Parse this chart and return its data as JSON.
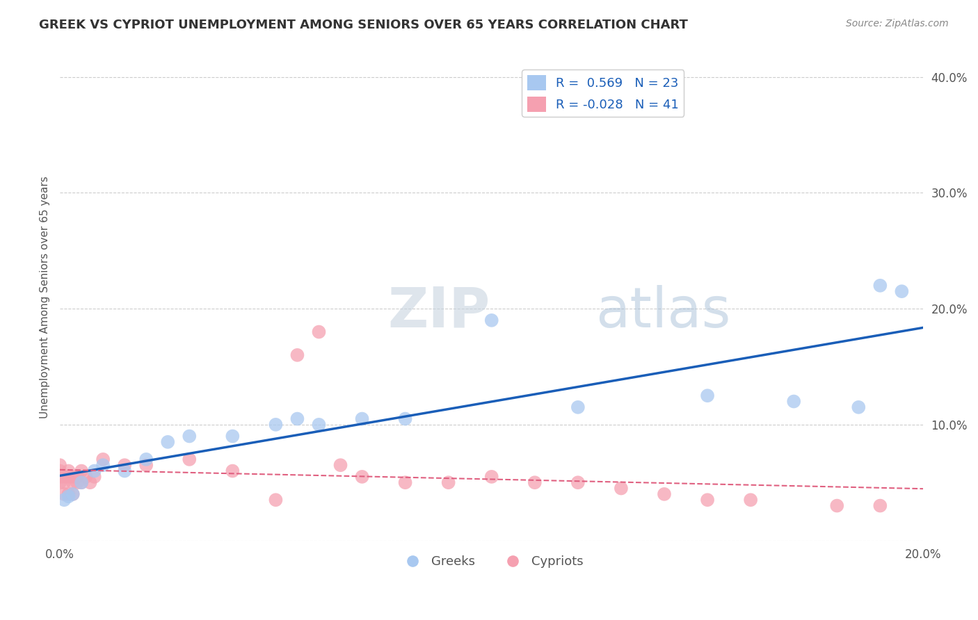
{
  "title": "GREEK VS CYPRIOT UNEMPLOYMENT AMONG SENIORS OVER 65 YEARS CORRELATION CHART",
  "source": "Source: ZipAtlas.com",
  "ylabel": "Unemployment Among Seniors over 65 years",
  "xlim": [
    0.0,
    0.2
  ],
  "ylim": [
    0.0,
    0.42
  ],
  "xticks": [
    0.0,
    0.05,
    0.1,
    0.15,
    0.2
  ],
  "xticklabels": [
    "0.0%",
    "",
    "",
    "",
    "20.0%"
  ],
  "yticks_right": [
    0.0,
    0.1,
    0.2,
    0.3,
    0.4
  ],
  "ytick_labels_right": [
    "",
    "10.0%",
    "20.0%",
    "30.0%",
    "40.0%"
  ],
  "greek_R": 0.569,
  "greek_N": 23,
  "cypriot_R": -0.028,
  "cypriot_N": 41,
  "greek_color": "#a8c8f0",
  "cypriot_color": "#f5a0b0",
  "greek_line_color": "#1a5eb8",
  "cypriot_line_color": "#e06080",
  "bg_color": "#ffffff",
  "grid_color": "#cccccc",
  "greek_x": [
    0.001,
    0.002,
    0.003,
    0.005,
    0.008,
    0.01,
    0.015,
    0.02,
    0.025,
    0.03,
    0.04,
    0.05,
    0.055,
    0.06,
    0.07,
    0.08,
    0.1,
    0.12,
    0.15,
    0.17,
    0.185,
    0.19,
    0.195
  ],
  "greek_y": [
    0.035,
    0.038,
    0.04,
    0.05,
    0.06,
    0.065,
    0.06,
    0.07,
    0.085,
    0.09,
    0.09,
    0.1,
    0.105,
    0.1,
    0.105,
    0.105,
    0.19,
    0.115,
    0.125,
    0.12,
    0.115,
    0.22,
    0.215
  ],
  "cypriot_x": [
    0.0,
    0.0,
    0.0,
    0.0,
    0.001,
    0.001,
    0.001,
    0.002,
    0.002,
    0.002,
    0.003,
    0.003,
    0.003,
    0.004,
    0.004,
    0.005,
    0.005,
    0.006,
    0.007,
    0.008,
    0.01,
    0.015,
    0.02,
    0.03,
    0.04,
    0.05,
    0.055,
    0.06,
    0.065,
    0.07,
    0.08,
    0.09,
    0.1,
    0.11,
    0.12,
    0.13,
    0.14,
    0.15,
    0.16,
    0.18,
    0.19
  ],
  "cypriot_y": [
    0.05,
    0.055,
    0.06,
    0.065,
    0.04,
    0.05,
    0.055,
    0.04,
    0.055,
    0.06,
    0.04,
    0.05,
    0.055,
    0.05,
    0.055,
    0.05,
    0.06,
    0.055,
    0.05,
    0.055,
    0.07,
    0.065,
    0.065,
    0.07,
    0.06,
    0.035,
    0.16,
    0.18,
    0.065,
    0.055,
    0.05,
    0.05,
    0.055,
    0.05,
    0.05,
    0.045,
    0.04,
    0.035,
    0.035,
    0.03,
    0.03
  ]
}
